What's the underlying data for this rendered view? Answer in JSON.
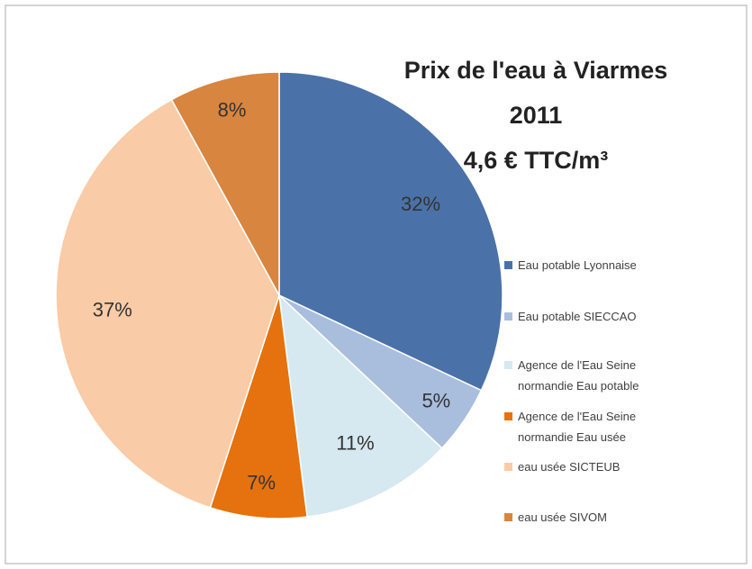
{
  "chart_data": {
    "type": "pie",
    "title": [
      "Prix de l'eau à Viarmes",
      "2011",
      "4,6 € TTC/m³"
    ],
    "categories": [
      "Eau potable Lyonnaise",
      "Eau potable SIECCAO",
      "Agence de l'Eau Seine normandie Eau potable",
      "Agence de l'Eau Seine normandie Eau usée",
      "eau usée SICTEUB",
      "eau usée SIVOM"
    ],
    "values": [
      32,
      5,
      11,
      7,
      37,
      8
    ],
    "value_labels": [
      "32%",
      "5%",
      "11%",
      "7%",
      "37%",
      "8%"
    ],
    "colors": [
      "#4a72a8",
      "#a9bedd",
      "#d6e8f0",
      "#e5720e",
      "#f9cba6",
      "#d88540"
    ],
    "legend": "right"
  }
}
